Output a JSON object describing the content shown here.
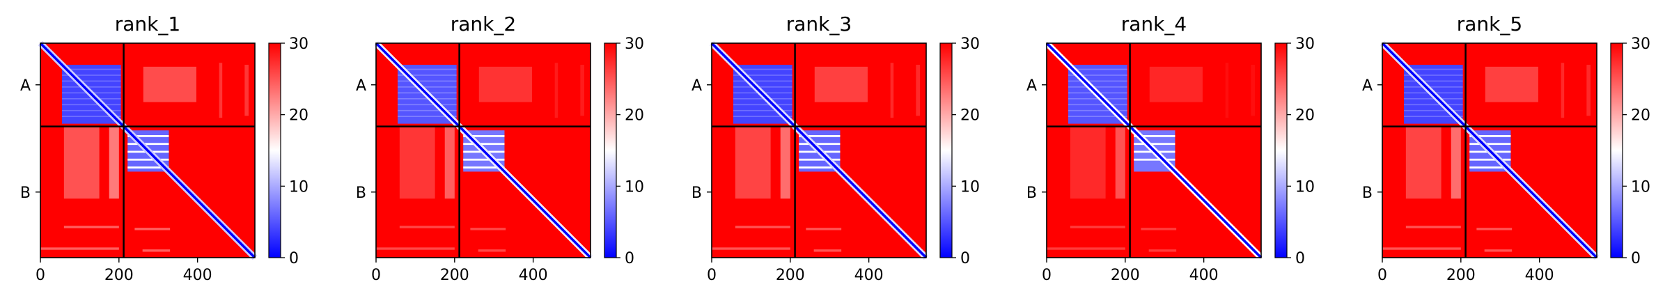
{
  "chart_data": [
    {
      "type": "heatmap",
      "title": "rank_1",
      "chains": [
        "A",
        "B"
      ],
      "chain_boundary": 212,
      "x_ticks": [
        0,
        200,
        400
      ],
      "xlim": [
        0,
        546
      ],
      "colorbar": {
        "min": 0,
        "max": 30,
        "ticks": [
          0,
          10,
          20,
          30
        ],
        "colormap": "bwr"
      },
      "features": {
        "a_block_value": 4,
        "b_block_value": 6,
        "cross_value": 24,
        "band_min": 12,
        "b_stripes": 5
      }
    },
    {
      "type": "heatmap",
      "title": "rank_2",
      "chains": [
        "A",
        "B"
      ],
      "chain_boundary": 212,
      "x_ticks": [
        0,
        200,
        400
      ],
      "xlim": [
        0,
        546
      ],
      "colorbar": {
        "min": 0,
        "max": 30,
        "ticks": [
          0,
          10,
          20,
          30
        ],
        "colormap": "bwr"
      },
      "features": {
        "a_block_value": 5,
        "b_block_value": 7,
        "cross_value": 26,
        "band_min": 14,
        "b_stripes": 5
      }
    },
    {
      "type": "heatmap",
      "title": "rank_3",
      "chains": [
        "A",
        "B"
      ],
      "chain_boundary": 212,
      "x_ticks": [
        0,
        200,
        400
      ],
      "xlim": [
        0,
        546
      ],
      "colorbar": {
        "min": 0,
        "max": 30,
        "ticks": [
          0,
          10,
          20,
          30
        ],
        "colormap": "bwr"
      },
      "features": {
        "a_block_value": 4,
        "b_block_value": 6,
        "cross_value": 25,
        "band_min": 13,
        "b_stripes": 5
      }
    },
    {
      "type": "heatmap",
      "title": "rank_4",
      "chains": [
        "A",
        "B"
      ],
      "chain_boundary": 212,
      "x_ticks": [
        0,
        200,
        400
      ],
      "xlim": [
        0,
        546
      ],
      "colorbar": {
        "min": 0,
        "max": 30,
        "ticks": [
          0,
          10,
          20,
          30
        ],
        "colormap": "bwr"
      },
      "features": {
        "a_block_value": 5,
        "b_block_value": 7,
        "cross_value": 27,
        "band_min": 15,
        "b_stripes": 4
      }
    },
    {
      "type": "heatmap",
      "title": "rank_5",
      "chains": [
        "A",
        "B"
      ],
      "chain_boundary": 212,
      "x_ticks": [
        0,
        200,
        400
      ],
      "xlim": [
        0,
        546
      ],
      "colorbar": {
        "min": 0,
        "max": 30,
        "ticks": [
          0,
          10,
          20,
          30
        ],
        "colormap": "bwr"
      },
      "features": {
        "a_block_value": 4,
        "b_block_value": 6,
        "cross_value": 25,
        "band_min": 13,
        "b_stripes": 5
      }
    }
  ]
}
